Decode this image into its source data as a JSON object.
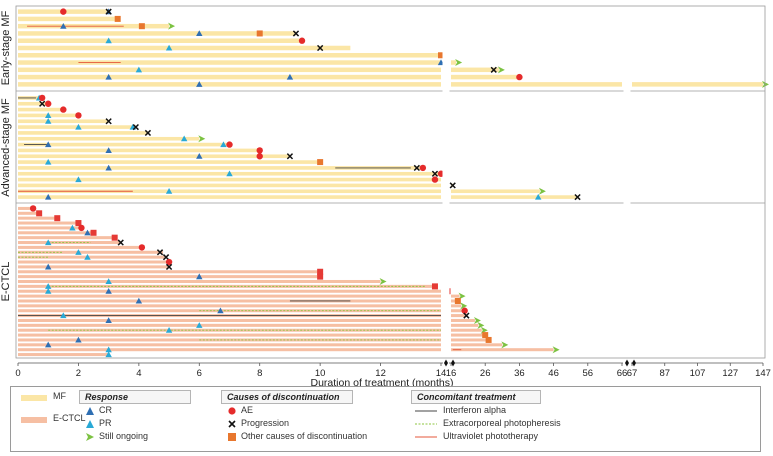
{
  "chart_data": {
    "type": "swimmer",
    "xlabel": "Duration of treatment (months)",
    "x_ticks_segment_1": [
      0,
      2,
      4,
      6,
      8,
      10,
      12,
      14
    ],
    "x_ticks_segment_2": [
      16,
      26,
      36,
      46,
      56,
      66
    ],
    "x_ticks_segment_3": [
      67,
      87,
      107,
      127,
      147
    ],
    "axis_break_after": [
      14,
      66
    ],
    "groups": [
      {
        "name": "Early-stage MF",
        "bar_type": "MF",
        "bars": [
          {
            "end": 3.0,
            "events": [
              {
                "t": 1.5,
                "type": "AE"
              },
              {
                "t": 3.0,
                "type": "CR"
              },
              {
                "t": 3.0,
                "type": "Progression"
              }
            ]
          },
          {
            "end": 3.3,
            "events": [
              {
                "t": 3.3,
                "type": "Other"
              }
            ]
          },
          {
            "end": 5.0,
            "events": [
              {
                "t": 1.5,
                "type": "CR"
              },
              {
                "t": 4.1,
                "type": "Other"
              },
              {
                "t": 5.0,
                "type": "Ongoing"
              }
            ],
            "conmed": {
              "type": "UV",
              "from": 0.3,
              "to": 3.5
            }
          },
          {
            "end": 9.2,
            "events": [
              {
                "t": 6.0,
                "type": "CR"
              },
              {
                "t": 8.0,
                "type": "Other"
              },
              {
                "t": 9.2,
                "type": "Progression"
              }
            ]
          },
          {
            "end": 9.4,
            "events": [
              {
                "t": 3.0,
                "type": "PR"
              },
              {
                "t": 9.4,
                "type": "AE"
              }
            ]
          },
          {
            "end": 11.0,
            "events": [
              {
                "t": 5.0,
                "type": "PR"
              },
              {
                "t": 10.0,
                "type": "Progression"
              }
            ]
          },
          {
            "end": 14.0,
            "events": [
              {
                "t": 14.0,
                "type": "Other"
              }
            ]
          },
          {
            "end": 17.5,
            "events": [
              {
                "t": 14.0,
                "type": "CR"
              },
              {
                "t": 17.5,
                "type": "Ongoing"
              }
            ],
            "conmed": {
              "type": "UV",
              "from": 2.0,
              "to": 3.4
            }
          },
          {
            "end": 30.0,
            "events": [
              {
                "t": 4.0,
                "type": "PR"
              },
              {
                "t": 28.5,
                "type": "Progression"
              },
              {
                "t": 30.0,
                "type": "Ongoing"
              }
            ]
          },
          {
            "end": 36.0,
            "events": [
              {
                "t": 3.0,
                "type": "CR"
              },
              {
                "t": 9.0,
                "type": "CR"
              },
              {
                "t": 36.0,
                "type": "AE"
              }
            ]
          },
          {
            "end": 147.0,
            "events": [
              {
                "t": 6.0,
                "type": "CR"
              },
              {
                "t": 147.0,
                "type": "Ongoing"
              }
            ]
          }
        ]
      },
      {
        "name": "Advanced-stage MF",
        "bar_type": "MF",
        "bars": [
          {
            "end": 0.8,
            "events": [
              {
                "t": 0.7,
                "type": "PR"
              },
              {
                "t": 0.8,
                "type": "AE"
              }
            ],
            "conmed": {
              "type": "IFN",
              "from": 0.0,
              "to": 0.6
            }
          },
          {
            "end": 1.0,
            "events": [
              {
                "t": 0.8,
                "type": "Progression"
              },
              {
                "t": 1.0,
                "type": "AE"
              }
            ]
          },
          {
            "end": 1.5,
            "events": [
              {
                "t": 1.5,
                "type": "AE"
              }
            ]
          },
          {
            "end": 2.0,
            "events": [
              {
                "t": 1.0,
                "type": "PR"
              },
              {
                "t": 2.0,
                "type": "AE"
              }
            ]
          },
          {
            "end": 3.0,
            "events": [
              {
                "t": 1.0,
                "type": "PR"
              },
              {
                "t": 3.0,
                "type": "Progression"
              }
            ]
          },
          {
            "end": 3.9,
            "events": [
              {
                "t": 2.0,
                "type": "PR"
              },
              {
                "t": 3.8,
                "type": "PR"
              },
              {
                "t": 3.9,
                "type": "Progression"
              }
            ]
          },
          {
            "end": 4.3,
            "events": [
              {
                "t": 4.3,
                "type": "Progression"
              }
            ]
          },
          {
            "end": 6.0,
            "events": [
              {
                "t": 5.5,
                "type": "PR"
              },
              {
                "t": 6.0,
                "type": "Ongoing"
              }
            ]
          },
          {
            "end": 7.0,
            "events": [
              {
                "t": 1.0,
                "type": "CR"
              },
              {
                "t": 6.8,
                "type": "PR"
              },
              {
                "t": 7.0,
                "type": "AE"
              }
            ],
            "conmed": {
              "type": "IFN",
              "from": 0.2,
              "to": 1.0
            }
          },
          {
            "end": 8.0,
            "events": [
              {
                "t": 3.0,
                "type": "CR"
              },
              {
                "t": 8.0,
                "type": "AE"
              }
            ]
          },
          {
            "end": 9.0,
            "events": [
              {
                "t": 6.0,
                "type": "CR"
              },
              {
                "t": 8.0,
                "type": "AE"
              },
              {
                "t": 9.0,
                "type": "Progression"
              }
            ]
          },
          {
            "end": 10.0,
            "events": [
              {
                "t": 1.0,
                "type": "PR"
              },
              {
                "t": 10.0,
                "type": "Other"
              }
            ]
          },
          {
            "end": 13.4,
            "events": [
              {
                "t": 3.0,
                "type": "CR"
              },
              {
                "t": 13.2,
                "type": "Progression"
              },
              {
                "t": 13.4,
                "type": "AE"
              }
            ],
            "conmed": {
              "type": "IFN",
              "from": 10.5,
              "to": 13.0
            }
          },
          {
            "end": 14.0,
            "events": [
              {
                "t": 7.0,
                "type": "PR"
              },
              {
                "t": 13.8,
                "type": "Progression"
              },
              {
                "t": 14.0,
                "type": "AE"
              }
            ]
          },
          {
            "end": 14.0,
            "events": [
              {
                "t": 2.0,
                "type": "PR"
              },
              {
                "t": 13.8,
                "type": "AE"
              }
            ]
          },
          {
            "end": 16.5,
            "events": [
              {
                "t": 16.5,
                "type": "Progression"
              }
            ]
          },
          {
            "end": 42.0,
            "events": [
              {
                "t": 5.0,
                "type": "PR"
              },
              {
                "t": 42.0,
                "type": "Ongoing"
              }
            ],
            "conmed": {
              "type": "UV",
              "from": 0.0,
              "to": 3.8
            }
          },
          {
            "end": 53.0,
            "events": [
              {
                "t": 1.0,
                "type": "CR"
              },
              {
                "t": 41.5,
                "type": "PR"
              },
              {
                "t": 53.0,
                "type": "Progression"
              }
            ]
          }
        ]
      },
      {
        "name": "E-CTCL",
        "bar_type": "E-CTCL",
        "bars": [
          {
            "end": 0.5,
            "events": [
              {
                "t": 0.5,
                "type": "AE"
              }
            ]
          },
          {
            "end": 0.7,
            "events": [
              {
                "t": 0.7,
                "type": "Other"
              }
            ]
          },
          {
            "end": 1.3,
            "events": [
              {
                "t": 1.3,
                "type": "Other"
              }
            ]
          },
          {
            "end": 2.0,
            "events": [
              {
                "t": 2.0,
                "type": "Other"
              }
            ]
          },
          {
            "end": 2.1,
            "events": [
              {
                "t": 1.8,
                "type": "PR"
              },
              {
                "t": 2.1,
                "type": "AE"
              }
            ]
          },
          {
            "end": 2.5,
            "events": [
              {
                "t": 2.3,
                "type": "CR"
              },
              {
                "t": 2.5,
                "type": "Other"
              }
            ]
          },
          {
            "end": 3.2,
            "events": [
              {
                "t": 3.2,
                "type": "Other"
              }
            ]
          },
          {
            "end": 3.4,
            "events": [
              {
                "t": 1.0,
                "type": "PR"
              },
              {
                "t": 3.4,
                "type": "Progression"
              }
            ],
            "conmed": {
              "type": "ECP",
              "from": 1.0,
              "to": 2.4
            }
          },
          {
            "end": 4.1,
            "events": [
              {
                "t": 4.1,
                "type": "AE"
              }
            ]
          },
          {
            "end": 4.8,
            "events": [
              {
                "t": 2.0,
                "type": "PR"
              },
              {
                "t": 4.7,
                "type": "Progression"
              }
            ],
            "conmed": {
              "type": "ECP",
              "from": 0.0,
              "to": 1.5
            }
          },
          {
            "end": 4.9,
            "events": [
              {
                "t": 2.3,
                "type": "PR"
              },
              {
                "t": 4.9,
                "type": "Progression"
              }
            ],
            "conmed": {
              "type": "ECP",
              "from": 0.0,
              "to": 1.0
            }
          },
          {
            "end": 5.0,
            "events": [
              {
                "t": 5.0,
                "type": "AE"
              }
            ]
          },
          {
            "end": 5.0,
            "events": [
              {
                "t": 1.0,
                "type": "CR"
              },
              {
                "t": 5.0,
                "type": "Progression"
              }
            ]
          },
          {
            "end": 10.0,
            "events": [
              {
                "t": 10.0,
                "type": "Other"
              }
            ]
          },
          {
            "end": 10.0,
            "events": [
              {
                "t": 6.0,
                "type": "CR"
              },
              {
                "t": 10.0,
                "type": "Other"
              }
            ]
          },
          {
            "end": 12.0,
            "events": [
              {
                "t": 3.0,
                "type": "PR"
              },
              {
                "t": 12.0,
                "type": "Ongoing"
              }
            ]
          },
          {
            "end": 13.9,
            "events": [
              {
                "t": 1.0,
                "type": "PR"
              },
              {
                "t": 13.8,
                "type": "Other"
              }
            ],
            "conmed": {
              "type": "ECP",
              "from": 1.0,
              "to": 13.5
            }
          },
          {
            "end": 15.3,
            "events": [
              {
                "t": 1.0,
                "type": "PR"
              },
              {
                "t": 3.0,
                "type": "CR"
              },
              {
                "t": 15.3,
                "type": "Other"
              }
            ]
          },
          {
            "end": 18.5,
            "events": [
              {
                "t": 18.5,
                "type": "Ongoing"
              }
            ]
          },
          {
            "end": 18.5,
            "events": [
              {
                "t": 4.0,
                "type": "CR"
              },
              {
                "t": 18.0,
                "type": "Other"
              }
            ],
            "conmed": {
              "type": "IFN",
              "from": 9.0,
              "to": 11.0
            }
          },
          {
            "end": 19.0,
            "events": [
              {
                "t": 19.0,
                "type": "Ongoing"
              }
            ]
          },
          {
            "end": 20.0,
            "events": [
              {
                "t": 6.7,
                "type": "CR"
              },
              {
                "t": 20.0,
                "type": "AE"
              }
            ],
            "conmed": {
              "type": "ECP",
              "from": 6.0,
              "to": 14.0
            }
          },
          {
            "end": 20.5,
            "events": [
              {
                "t": 1.5,
                "type": "PR"
              },
              {
                "t": 20.5,
                "type": "Progression"
              }
            ],
            "conmed": {
              "type": "IFN",
              "from": 0.0,
              "to": 14.0
            }
          },
          {
            "end": 23.0,
            "events": [
              {
                "t": 3.0,
                "type": "CR"
              },
              {
                "t": 23.0,
                "type": "Ongoing"
              }
            ]
          },
          {
            "end": 24.0,
            "events": [
              {
                "t": 6.0,
                "type": "PR"
              },
              {
                "t": 24.0,
                "type": "Ongoing"
              }
            ]
          },
          {
            "end": 25.0,
            "events": [
              {
                "t": 5.0,
                "type": "PR"
              },
              {
                "t": 25.0,
                "type": "Ongoing"
              }
            ],
            "conmed": {
              "type": "ECP",
              "from": 1.0,
              "to": 14.0
            }
          },
          {
            "end": 26.0,
            "events": [
              {
                "t": 26.0,
                "type": "Other"
              }
            ]
          },
          {
            "end": 27.0,
            "events": [
              {
                "t": 2.0,
                "type": "CR"
              },
              {
                "t": 27.0,
                "type": "Other"
              }
            ],
            "conmed": {
              "type": "ECP",
              "from": 6.0,
              "to": 14.0
            }
          },
          {
            "end": 31.0,
            "events": [
              {
                "t": 1.0,
                "type": "CR"
              },
              {
                "t": 31.0,
                "type": "Ongoing"
              }
            ]
          },
          {
            "end": 46.0,
            "events": [
              {
                "t": 3.0,
                "type": "PR"
              },
              {
                "t": 46.0,
                "type": "Ongoing"
              }
            ],
            "conmed": {
              "type": "UV",
              "from": 16.5,
              "to": 19.0
            }
          },
          {
            "end": 3.0,
            "events": [
              {
                "t": 3.0,
                "type": "PR"
              }
            ]
          }
        ]
      }
    ],
    "legend": {
      "bar_types": [
        {
          "label": "MF",
          "color": "#fbe6a6"
        },
        {
          "label": "E-CTCL",
          "color": "#f6bfa3"
        }
      ],
      "response": {
        "title": "Response",
        "items": [
          {
            "label": "CR",
            "key": "CR"
          },
          {
            "label": "PR",
            "key": "PR"
          },
          {
            "label": "Still ongoing",
            "key": "Ongoing"
          }
        ]
      },
      "discontinuation": {
        "title": "Causes of discontinuation",
        "items": [
          {
            "label": "AE",
            "key": "AE"
          },
          {
            "label": "Progression",
            "key": "Progression"
          },
          {
            "label": "Other causes of discontinuation",
            "key": "Other"
          }
        ]
      },
      "concomitant": {
        "title": "Concomitant treatment",
        "items": [
          {
            "label": "Interferon alpha",
            "key": "IFN"
          },
          {
            "label": "Extracorporeal photopheresis",
            "key": "ECP"
          },
          {
            "label": "Ultraviolet phototherapy",
            "key": "UV"
          }
        ]
      }
    },
    "colors": {
      "MF": "#fbe6a6",
      "E-CTCL": "#f6bfa3",
      "CR": "#2f6fb3",
      "PR": "#29a9d6",
      "Ongoing": "#7cc242",
      "AE": "#e52b2b",
      "Progression": "#111111",
      "Other": "#e8772e",
      "OtherECTCL": "#e53a35",
      "IFN": "#444444",
      "ECP": "#8cc63f",
      "UV": "#e4573b"
    }
  }
}
